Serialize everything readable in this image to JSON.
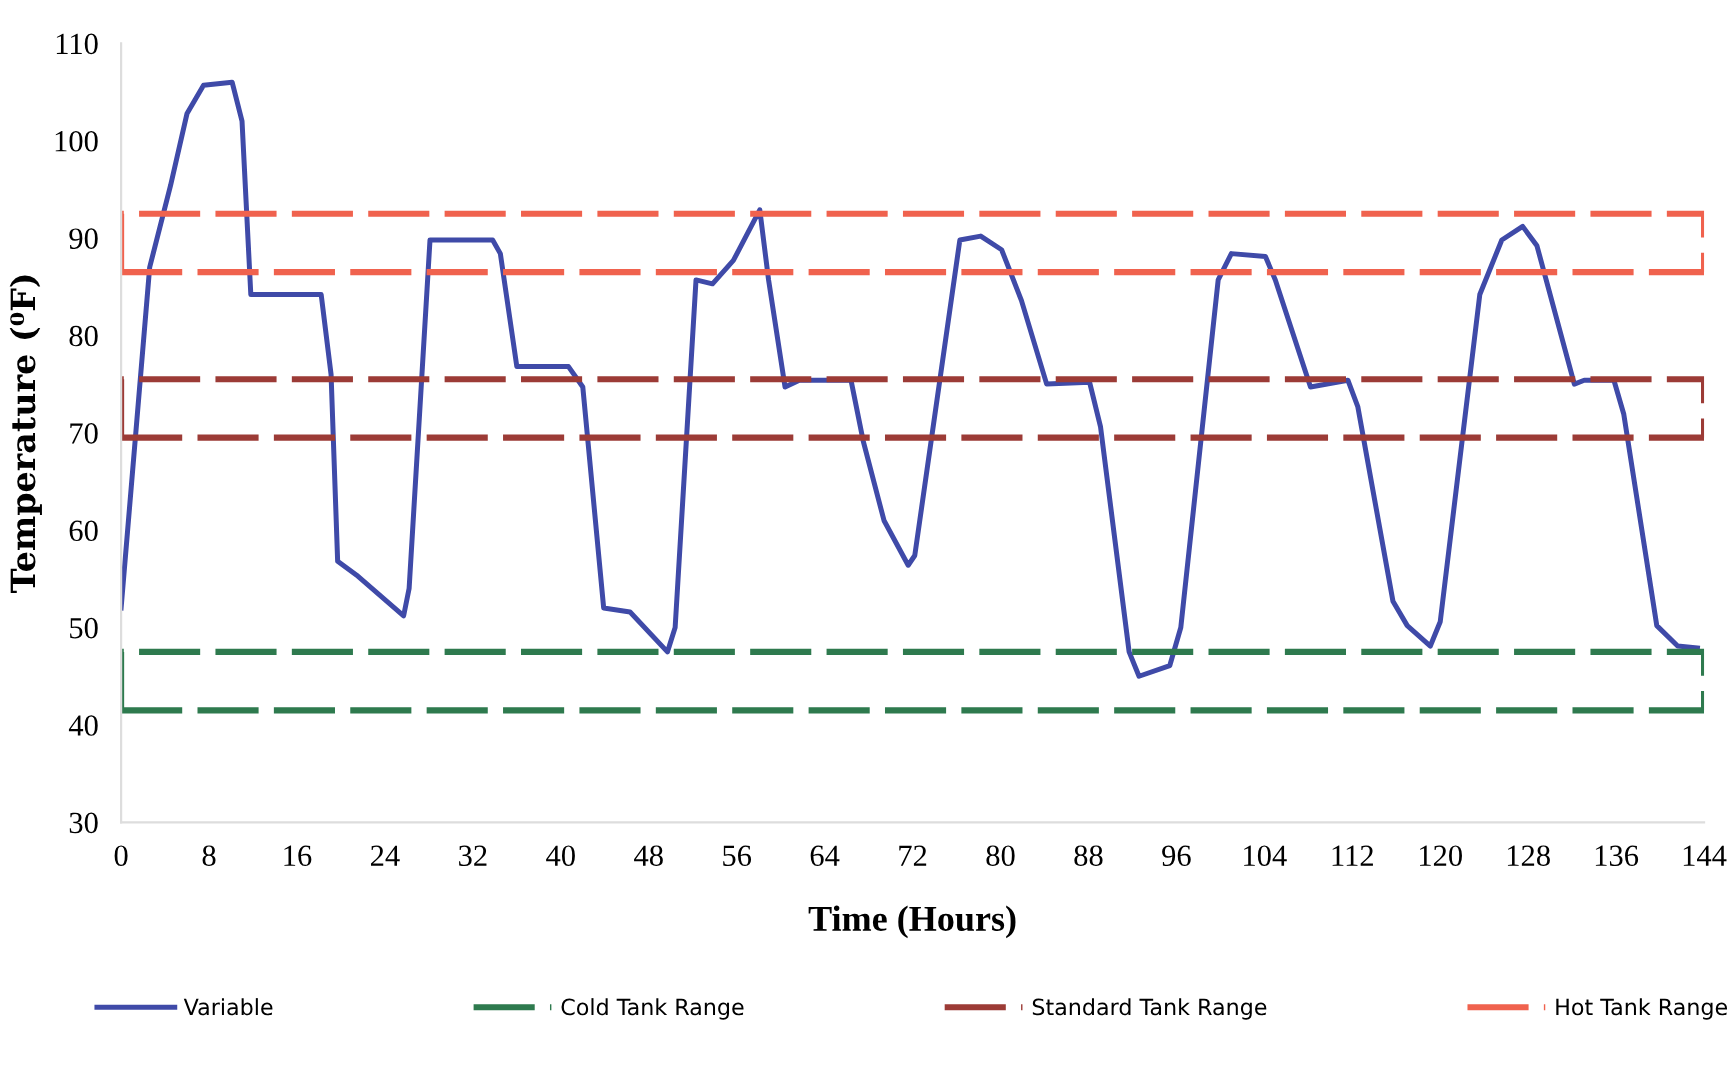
{
  "chart_data": {
    "type": "line",
    "xlabel": "Time (Hours)",
    "ylabel": "Temperature (⁰F)",
    "xlim": [
      0,
      144
    ],
    "xticks": [
      0,
      8,
      16,
      24,
      32,
      40,
      48,
      56,
      64,
      72,
      80,
      88,
      96,
      104,
      112,
      120,
      128,
      136,
      144
    ],
    "ylim": [
      30,
      110
    ],
    "yticks": [
      30,
      40,
      50,
      60,
      70,
      80,
      90,
      100,
      110
    ],
    "grid": false,
    "legend": "bottom",
    "marker": "none",
    "series": [
      {
        "name": "Variable",
        "color": "#3f4aa8",
        "line_style": "solid",
        "x": [
          0,
          2.6,
          4.5,
          6,
          7.5,
          10.1,
          11,
          11.8,
          18.2,
          19.1,
          19.7,
          21.4,
          25.7,
          26.2,
          28.1,
          33.8,
          34.5,
          36,
          40.7,
          42,
          43.9,
          46.3,
          49.7,
          50.4,
          52.3,
          53.8,
          55.7,
          58.1,
          58.9,
          60.4,
          61.7,
          66.4,
          67.5,
          69.4,
          71.6,
          72.2,
          76.3,
          78.2,
          80.1,
          81.9,
          84.2,
          88.1,
          89.1,
          91.7,
          92.6,
          95.4,
          96.4,
          99.8,
          101,
          104.1,
          105,
          108.2,
          111.6,
          112.5,
          115.7,
          117,
          119.1,
          120,
          123.6,
          125.6,
          127.5,
          128.8,
          132.2,
          133.1,
          135.8,
          136.7,
          139.7,
          141.6,
          143.4
        ],
        "values": [
          52,
          87,
          95.4,
          102.8,
          105.7,
          106,
          102,
          84.2,
          84.2,
          76,
          56.8,
          55.4,
          51.2,
          54,
          89.8,
          89.8,
          88.4,
          76.8,
          76.8,
          74.7,
          52,
          51.6,
          47.5,
          50,
          85.7,
          85.3,
          87.7,
          92.9,
          85.7,
          74.7,
          75.4,
          75.4,
          69.2,
          61,
          56.4,
          57.4,
          89.8,
          90.2,
          88.8,
          83.6,
          75,
          75.2,
          70.6,
          47.5,
          45,
          46.1,
          50,
          85.7,
          88.4,
          88.1,
          85.7,
          74.7,
          75.4,
          72.7,
          52.7,
          50.2,
          48.1,
          50.6,
          84.2,
          89.8,
          91.2,
          89.2,
          75,
          75.4,
          75.4,
          71.9,
          50.2,
          48.1,
          47.9
        ]
      },
      {
        "name": "Cold Tank Range",
        "color": "#2e7a4e",
        "line_style": "dashed",
        "x": [
          0,
          0,
          144,
          144
        ],
        "values": [
          41.5,
          47.5,
          47.5,
          41.5
        ]
      },
      {
        "color": "#2e7a4e",
        "line_style": "dashed",
        "x": [
          0,
          144
        ],
        "values": [
          41.5,
          41.5
        ]
      },
      {
        "name": "Standard Tank Range",
        "color": "#9c3b36",
        "line_style": "dashed",
        "x": [
          0,
          0,
          144,
          144
        ],
        "values": [
          69.5,
          75.5,
          75.5,
          69.5
        ]
      },
      {
        "color": "#9c3b36",
        "line_style": "dashed",
        "x": [
          0,
          144
        ],
        "values": [
          69.5,
          69.5
        ]
      },
      {
        "name": "Hot Tank Range",
        "color": "#f0624e",
        "line_style": "dashed",
        "x": [
          0,
          0,
          144,
          144
        ],
        "values": [
          86.5,
          92.5,
          92.5,
          86.5
        ]
      },
      {
        "color": "#f0624e",
        "line_style": "dashed",
        "x": [
          0,
          144
        ],
        "values": [
          86.5,
          86.5
        ]
      }
    ]
  }
}
